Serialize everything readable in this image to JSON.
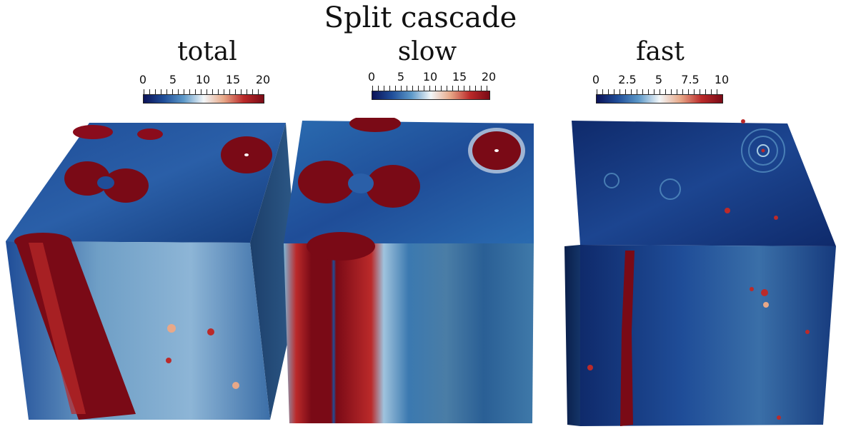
{
  "figure": {
    "title": "Split cascade",
    "colormap": [
      "#0b1257",
      "#1f4d98",
      "#5c98c8",
      "#f3f7f9",
      "#e8a888",
      "#bb2a2a",
      "#7a0a16"
    ],
    "panels": [
      {
        "id": "total",
        "label": "total",
        "colorbar": {
          "min": 0,
          "max": 20,
          "ticks": [
            "0",
            "5",
            "10",
            "15",
            "20"
          ]
        }
      },
      {
        "id": "slow",
        "label": "slow",
        "colorbar": {
          "min": 0,
          "max": 20,
          "ticks": [
            "0",
            "5",
            "10",
            "15",
            "20"
          ]
        }
      },
      {
        "id": "fast",
        "label": "fast",
        "colorbar": {
          "min": 0,
          "max": 10,
          "ticks": [
            "0",
            "2.5",
            "5",
            "7.5",
            "10"
          ]
        }
      }
    ]
  }
}
